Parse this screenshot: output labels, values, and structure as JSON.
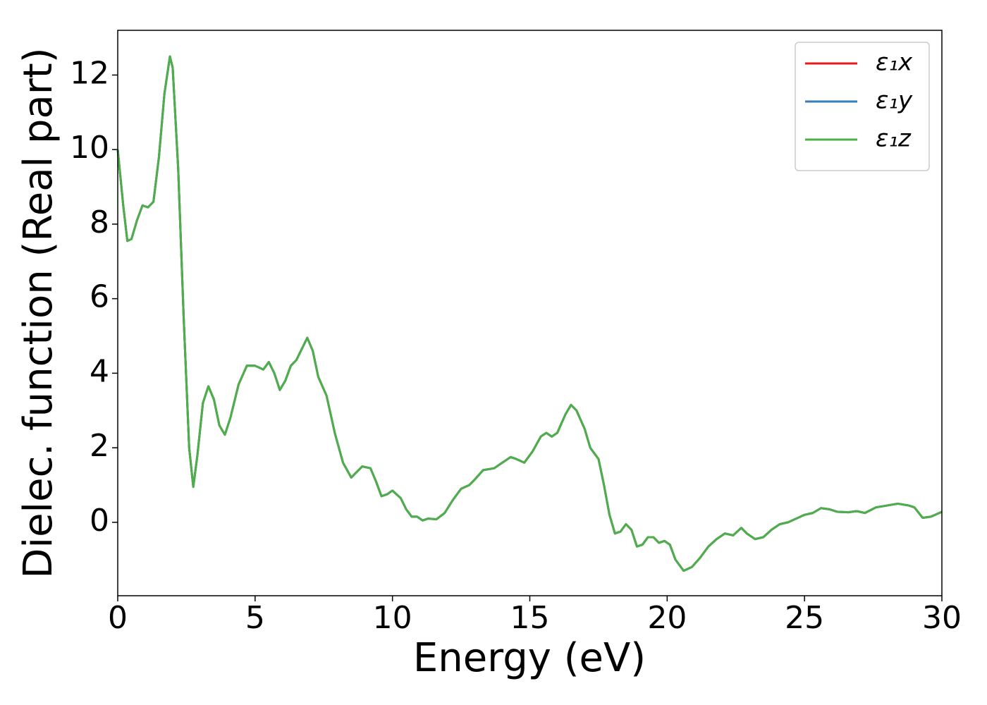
{
  "chart_data": {
    "type": "line",
    "xlabel": "Energy (eV)",
    "ylabel": "Dielec. function (Real part)",
    "xlim": [
      0,
      30
    ],
    "ylim": [
      -1.97,
      13.2
    ],
    "xticks": [
      0,
      5,
      10,
      15,
      20,
      25,
      30
    ],
    "yticks": [
      0,
      2,
      4,
      6,
      8,
      10,
      12
    ],
    "legend": "upper right",
    "x": [
      0,
      0.2,
      0.35,
      0.5,
      0.7,
      0.9,
      1.1,
      1.3,
      1.5,
      1.7,
      1.9,
      2.0,
      2.2,
      2.4,
      2.6,
      2.75,
      2.9,
      3.1,
      3.3,
      3.5,
      3.7,
      3.9,
      4.1,
      4.4,
      4.7,
      5.0,
      5.3,
      5.5,
      5.7,
      5.9,
      6.1,
      6.3,
      6.5,
      6.7,
      6.9,
      7.1,
      7.3,
      7.6,
      7.9,
      8.2,
      8.5,
      8.7,
      8.9,
      9.2,
      9.4,
      9.6,
      9.8,
      10.0,
      10.3,
      10.5,
      10.7,
      10.9,
      11.1,
      11.3,
      11.6,
      11.9,
      12.2,
      12.5,
      12.8,
      13.0,
      13.3,
      13.7,
      14.0,
      14.3,
      14.5,
      14.8,
      15.1,
      15.4,
      15.6,
      15.8,
      16.0,
      16.3,
      16.5,
      16.7,
      17.0,
      17.2,
      17.5,
      17.7,
      17.9,
      18.1,
      18.3,
      18.5,
      18.7,
      18.9,
      19.1,
      19.3,
      19.5,
      19.7,
      19.9,
      20.1,
      20.3,
      20.6,
      20.9,
      21.2,
      21.5,
      21.8,
      22.1,
      22.4,
      22.7,
      22.9,
      23.2,
      23.5,
      23.8,
      24.1,
      24.4,
      24.7,
      25.0,
      25.3,
      25.6,
      25.9,
      26.2,
      26.6,
      26.9,
      27.2,
      27.6,
      28.0,
      28.4,
      28.8,
      29.0,
      29.3,
      29.6,
      30.0
    ],
    "series": [
      {
        "name": "ε₁x",
        "color": "#e41a1c",
        "values": [
          10.0,
          8.5,
          7.55,
          7.6,
          8.1,
          8.5,
          8.45,
          8.6,
          9.8,
          11.5,
          12.5,
          12.2,
          9.5,
          5.5,
          2.0,
          0.95,
          1.8,
          3.2,
          3.65,
          3.3,
          2.6,
          2.35,
          2.8,
          3.7,
          4.2,
          4.2,
          4.1,
          4.3,
          4.0,
          3.55,
          3.8,
          4.2,
          4.35,
          4.65,
          4.95,
          4.6,
          3.9,
          3.4,
          2.4,
          1.6,
          1.2,
          1.35,
          1.5,
          1.45,
          1.1,
          0.7,
          0.75,
          0.85,
          0.65,
          0.35,
          0.15,
          0.15,
          0.05,
          0.1,
          0.08,
          0.25,
          0.6,
          0.9,
          1.0,
          1.15,
          1.4,
          1.45,
          1.6,
          1.75,
          1.7,
          1.6,
          1.9,
          2.3,
          2.4,
          2.3,
          2.4,
          2.9,
          3.15,
          3.0,
          2.5,
          2.0,
          1.7,
          1.0,
          0.2,
          -0.3,
          -0.25,
          -0.05,
          -0.2,
          -0.65,
          -0.6,
          -0.4,
          -0.4,
          -0.55,
          -0.5,
          -0.6,
          -1.0,
          -1.3,
          -1.2,
          -0.95,
          -0.65,
          -0.45,
          -0.3,
          -0.35,
          -0.15,
          -0.3,
          -0.45,
          -0.4,
          -0.2,
          -0.05,
          0.0,
          0.1,
          0.2,
          0.25,
          0.38,
          0.35,
          0.28,
          0.27,
          0.3,
          0.25,
          0.4,
          0.45,
          0.5,
          0.45,
          0.4,
          0.12,
          0.15,
          0.28
        ]
      },
      {
        "name": "ε₁y",
        "color": "#377eb8",
        "values": [
          10.0,
          8.5,
          7.55,
          7.6,
          8.1,
          8.5,
          8.45,
          8.6,
          9.8,
          11.5,
          12.5,
          12.2,
          9.5,
          5.5,
          2.0,
          0.95,
          1.8,
          3.2,
          3.65,
          3.3,
          2.6,
          2.35,
          2.8,
          3.7,
          4.2,
          4.2,
          4.1,
          4.3,
          4.0,
          3.55,
          3.8,
          4.2,
          4.35,
          4.65,
          4.95,
          4.6,
          3.9,
          3.4,
          2.4,
          1.6,
          1.2,
          1.35,
          1.5,
          1.45,
          1.1,
          0.7,
          0.75,
          0.85,
          0.65,
          0.35,
          0.15,
          0.15,
          0.05,
          0.1,
          0.08,
          0.25,
          0.6,
          0.9,
          1.0,
          1.15,
          1.4,
          1.45,
          1.6,
          1.75,
          1.7,
          1.6,
          1.9,
          2.3,
          2.4,
          2.3,
          2.4,
          2.9,
          3.15,
          3.0,
          2.5,
          2.0,
          1.7,
          1.0,
          0.2,
          -0.3,
          -0.25,
          -0.05,
          -0.2,
          -0.65,
          -0.6,
          -0.4,
          -0.4,
          -0.55,
          -0.5,
          -0.6,
          -1.0,
          -1.3,
          -1.2,
          -0.95,
          -0.65,
          -0.45,
          -0.3,
          -0.35,
          -0.15,
          -0.3,
          -0.45,
          -0.4,
          -0.2,
          -0.05,
          0.0,
          0.1,
          0.2,
          0.25,
          0.38,
          0.35,
          0.28,
          0.27,
          0.3,
          0.25,
          0.4,
          0.45,
          0.5,
          0.45,
          0.4,
          0.12,
          0.15,
          0.28
        ]
      },
      {
        "name": "ε₁z",
        "color": "#4daf4a",
        "values": [
          10.0,
          8.5,
          7.55,
          7.6,
          8.1,
          8.5,
          8.45,
          8.6,
          9.8,
          11.5,
          12.5,
          12.2,
          9.5,
          5.5,
          2.0,
          0.95,
          1.8,
          3.2,
          3.65,
          3.3,
          2.6,
          2.35,
          2.8,
          3.7,
          4.2,
          4.2,
          4.1,
          4.3,
          4.0,
          3.55,
          3.8,
          4.2,
          4.35,
          4.65,
          4.95,
          4.6,
          3.9,
          3.4,
          2.4,
          1.6,
          1.2,
          1.35,
          1.5,
          1.45,
          1.1,
          0.7,
          0.75,
          0.85,
          0.65,
          0.35,
          0.15,
          0.15,
          0.05,
          0.1,
          0.08,
          0.25,
          0.6,
          0.9,
          1.0,
          1.15,
          1.4,
          1.45,
          1.6,
          1.75,
          1.7,
          1.6,
          1.9,
          2.3,
          2.4,
          2.3,
          2.4,
          2.9,
          3.15,
          3.0,
          2.5,
          2.0,
          1.7,
          1.0,
          0.2,
          -0.3,
          -0.25,
          -0.05,
          -0.2,
          -0.65,
          -0.6,
          -0.4,
          -0.4,
          -0.55,
          -0.5,
          -0.6,
          -1.0,
          -1.3,
          -1.2,
          -0.95,
          -0.65,
          -0.45,
          -0.3,
          -0.35,
          -0.15,
          -0.3,
          -0.45,
          -0.4,
          -0.2,
          -0.05,
          0.0,
          0.1,
          0.2,
          0.25,
          0.38,
          0.35,
          0.28,
          0.27,
          0.3,
          0.25,
          0.4,
          0.45,
          0.5,
          0.45,
          0.4,
          0.12,
          0.15,
          0.28
        ]
      }
    ]
  }
}
